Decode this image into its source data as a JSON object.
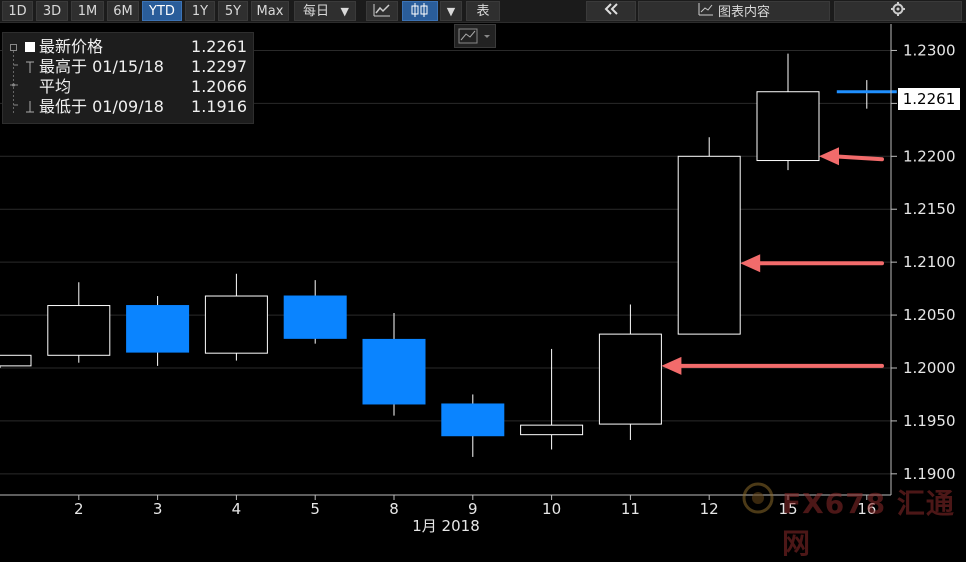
{
  "toolbar": {
    "periods": [
      "1D",
      "3D",
      "1M",
      "6M",
      "YTD",
      "1Y",
      "5Y",
      "Max"
    ],
    "active_period": "YTD",
    "frequency": "每日",
    "table_label": "表",
    "chart_contents_label": "图表内容"
  },
  "legend": {
    "rows": [
      {
        "label": "最新价格",
        "value": "1.2261"
      },
      {
        "label": "最高于 01/15/18",
        "value": "1.2297"
      },
      {
        "label": "平均",
        "value": "1.2066"
      },
      {
        "label": "最低于 01/09/18",
        "value": "1.1916"
      }
    ]
  },
  "last_price_tag": "1.2261",
  "watermark": "FX678 汇通网",
  "colors": {
    "up": "#000000",
    "up_border": "#ffffff",
    "down": "#0a84ff",
    "last_line": "#1f8fff",
    "arrow": "#f26b6b",
    "grid": "#2a2a2a"
  },
  "chart_data": {
    "type": "candlestick",
    "xlabel": "1月 2018",
    "y_ticks": [
      "1.2300",
      "1.2250",
      "1.2200",
      "1.2150",
      "1.2100",
      "1.2050",
      "1.2000",
      "1.1950",
      "1.1900"
    ],
    "ylim": [
      1.188,
      1.2325
    ],
    "candles": [
      {
        "label": "",
        "open": 1.2002,
        "high": 1.2012,
        "low": 1.2,
        "close": 1.2012
      },
      {
        "label": "2",
        "open": 1.2012,
        "high": 1.2081,
        "low": 1.2005,
        "close": 1.2059
      },
      {
        "label": "3",
        "open": 1.2059,
        "high": 1.2068,
        "low": 1.2002,
        "close": 1.2015
      },
      {
        "label": "4",
        "open": 1.2014,
        "high": 1.2089,
        "low": 1.2007,
        "close": 1.2068
      },
      {
        "label": "5",
        "open": 1.2068,
        "high": 1.2083,
        "low": 1.2023,
        "close": 1.2028
      },
      {
        "label": "8",
        "open": 1.2027,
        "high": 1.2052,
        "low": 1.1955,
        "close": 1.1966
      },
      {
        "label": "9",
        "open": 1.1966,
        "high": 1.1975,
        "low": 1.1916,
        "close": 1.1936
      },
      {
        "label": "10",
        "open": 1.1937,
        "high": 1.2018,
        "low": 1.1923,
        "close": 1.1946
      },
      {
        "label": "11",
        "open": 1.1947,
        "high": 1.206,
        "low": 1.1932,
        "close": 1.2032
      },
      {
        "label": "12",
        "open": 1.2032,
        "high": 1.2218,
        "low": 1.2032,
        "close": 1.22
      },
      {
        "label": "15",
        "open": 1.2196,
        "high": 1.2297,
        "low": 1.2187,
        "close": 1.2261
      },
      {
        "label": "16",
        "open": 1.2261,
        "high": 1.2272,
        "low": 1.2245,
        "close": 1.2261
      }
    ],
    "last_price": 1.2261,
    "grid": true,
    "annotations": [
      {
        "type": "arrow",
        "y": 1.2002,
        "target_label": "11"
      },
      {
        "type": "arrow",
        "y": 1.2099,
        "target_label": "12"
      },
      {
        "type": "arrow",
        "y": 1.22,
        "target_label": "15"
      }
    ]
  }
}
